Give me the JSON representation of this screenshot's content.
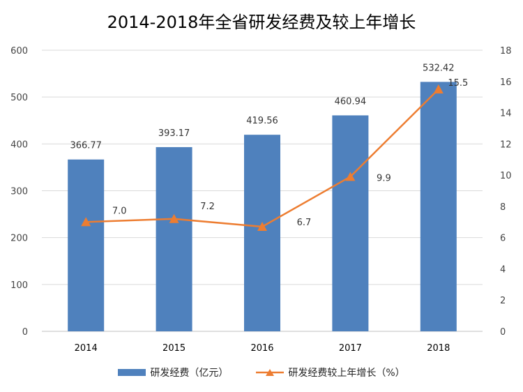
{
  "chart_data": {
    "type": "bar",
    "title": "2014-2018年全省研发经费及较上年增长",
    "categories": [
      "2014",
      "2015",
      "2016",
      "2017",
      "2018"
    ],
    "series": [
      {
        "name": "研发经费（亿元）",
        "type": "bar",
        "axis": "left",
        "values": [
          366.77,
          393.17,
          419.56,
          460.94,
          532.42
        ],
        "labels": [
          "366.77",
          "393.17",
          "419.56",
          "460.94",
          "532.42"
        ],
        "color": "#4f81bd"
      },
      {
        "name": "研发经费较上年增长（%）",
        "type": "line",
        "axis": "right",
        "marker": "triangle",
        "values": [
          7.0,
          7.2,
          6.7,
          9.9,
          15.5
        ],
        "labels": [
          "7.0",
          "7.2",
          "6.7",
          "9.9",
          "15.5"
        ],
        "color": "#ed7d31"
      }
    ],
    "ylim_left": [
      0,
      600
    ],
    "yticks_left": [
      "0",
      "100",
      "200",
      "300",
      "400",
      "500",
      "600"
    ],
    "ylim_right": [
      0,
      18
    ],
    "yticks_right": [
      "0",
      "2",
      "4",
      "6",
      "8",
      "10",
      "12",
      "14",
      "16",
      "18"
    ],
    "grid": true,
    "legend": "bottom"
  }
}
